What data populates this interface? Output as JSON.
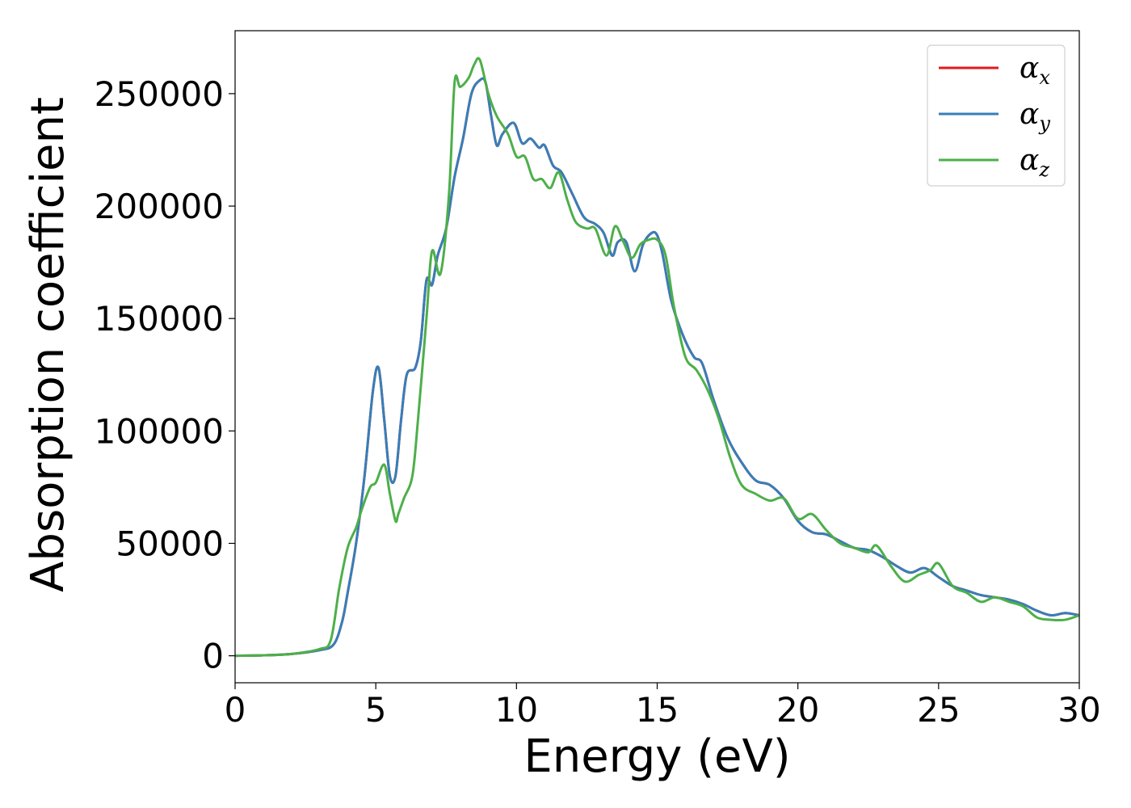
{
  "chart_data": {
    "type": "line",
    "title": "",
    "xlabel": "Energy (eV)",
    "ylabel": "Absorption coefficient",
    "xlim": [
      0,
      30
    ],
    "ylim": [
      -12000,
      278000
    ],
    "xticks": [
      0,
      5,
      10,
      15,
      20,
      25,
      30
    ],
    "yticks": [
      0,
      50000,
      100000,
      150000,
      200000,
      250000
    ],
    "grid": false,
    "legend_position": "top-right",
    "series": [
      {
        "name": "α",
        "subscript": "x",
        "color": "#e41a1c",
        "x": [
          0,
          1,
          2,
          3,
          3.5,
          3.8,
          4.0,
          4.3,
          4.6,
          4.9,
          5.1,
          5.3,
          5.5,
          5.7,
          5.9,
          6.1,
          6.4,
          6.6,
          6.8,
          7.0,
          7.2,
          7.5,
          7.8,
          8.1,
          8.4,
          8.7,
          8.9,
          9.1,
          9.3,
          9.5,
          9.9,
          10.2,
          10.5,
          10.8,
          11.0,
          11.3,
          11.6,
          12.0,
          12.4,
          12.8,
          13.1,
          13.4,
          13.6,
          13.9,
          14.2,
          14.5,
          14.8,
          15.0,
          15.2,
          15.5,
          15.9,
          16.3,
          16.6,
          17.0,
          17.5,
          18.0,
          18.5,
          19.0,
          19.5,
          20.0,
          20.5,
          21.0,
          21.5,
          22.0,
          22.5,
          23.0,
          23.5,
          24.0,
          24.5,
          25.0,
          25.5,
          26.0,
          26.5,
          27.0,
          27.5,
          28.0,
          28.5,
          29.0,
          29.5,
          30.0
        ],
        "y": [
          0,
          200,
          800,
          2500,
          5000,
          15000,
          28000,
          50000,
          80000,
          118000,
          128000,
          105000,
          80000,
          80000,
          105000,
          125000,
          128000,
          140000,
          167000,
          165000,
          178000,
          190000,
          213000,
          230000,
          250000,
          256000,
          255000,
          240000,
          227000,
          232000,
          237000,
          228000,
          230000,
          226000,
          227000,
          218000,
          215000,
          205000,
          195000,
          192000,
          188000,
          178000,
          184000,
          184000,
          171000,
          183000,
          188000,
          187000,
          178000,
          158000,
          143000,
          133000,
          130000,
          114000,
          97000,
          86000,
          78000,
          76000,
          70000,
          60000,
          55000,
          54000,
          51000,
          48000,
          47000,
          44000,
          40000,
          37000,
          39000,
          35000,
          31000,
          29000,
          27000,
          26000,
          25000,
          23000,
          20000,
          18000,
          19000,
          18000
        ]
      },
      {
        "name": "α",
        "subscript": "y",
        "color": "#377eb8",
        "x": [
          0,
          1,
          2,
          3,
          3.5,
          3.8,
          4.0,
          4.3,
          4.6,
          4.9,
          5.1,
          5.3,
          5.5,
          5.7,
          5.9,
          6.1,
          6.4,
          6.6,
          6.8,
          7.0,
          7.2,
          7.5,
          7.8,
          8.1,
          8.4,
          8.7,
          8.9,
          9.1,
          9.3,
          9.5,
          9.9,
          10.2,
          10.5,
          10.8,
          11.0,
          11.3,
          11.6,
          12.0,
          12.4,
          12.8,
          13.1,
          13.4,
          13.6,
          13.9,
          14.2,
          14.5,
          14.8,
          15.0,
          15.2,
          15.5,
          15.9,
          16.3,
          16.6,
          17.0,
          17.5,
          18.0,
          18.5,
          19.0,
          19.5,
          20.0,
          20.5,
          21.0,
          21.5,
          22.0,
          22.5,
          23.0,
          23.5,
          24.0,
          24.5,
          25.0,
          25.5,
          26.0,
          26.5,
          27.0,
          27.5,
          28.0,
          28.5,
          29.0,
          29.5,
          30.0
        ],
        "y": [
          0,
          200,
          800,
          2500,
          5000,
          15000,
          28000,
          50000,
          80000,
          118000,
          128000,
          105000,
          80000,
          80000,
          105000,
          125000,
          128000,
          140000,
          167000,
          165000,
          178000,
          190000,
          213000,
          230000,
          250000,
          256000,
          255000,
          240000,
          227000,
          232000,
          237000,
          228000,
          230000,
          226000,
          227000,
          218000,
          215000,
          205000,
          195000,
          192000,
          188000,
          178000,
          184000,
          184000,
          171000,
          183000,
          188000,
          187000,
          178000,
          158000,
          143000,
          133000,
          130000,
          114000,
          97000,
          86000,
          78000,
          76000,
          70000,
          60000,
          55000,
          54000,
          51000,
          48000,
          47000,
          44000,
          40000,
          37000,
          39000,
          35000,
          31000,
          29000,
          27000,
          26000,
          25000,
          23000,
          20000,
          18000,
          19000,
          18000
        ]
      },
      {
        "name": "α",
        "subscript": "z",
        "color": "#4daf4a",
        "x": [
          0,
          1,
          2,
          3,
          3.4,
          3.7,
          4.0,
          4.3,
          4.5,
          4.8,
          5.0,
          5.3,
          5.5,
          5.7,
          5.8,
          6.0,
          6.3,
          6.5,
          6.8,
          7.0,
          7.3,
          7.6,
          7.8,
          8.0,
          8.3,
          8.5,
          8.7,
          9.0,
          9.3,
          9.7,
          10.0,
          10.3,
          10.6,
          10.9,
          11.2,
          11.5,
          11.8,
          12.1,
          12.5,
          12.8,
          13.2,
          13.5,
          13.8,
          14.1,
          14.4,
          14.7,
          15.0,
          15.3,
          15.6,
          16.0,
          16.4,
          16.8,
          17.2,
          17.6,
          18.0,
          18.5,
          19.0,
          19.5,
          20.0,
          20.5,
          21.0,
          21.5,
          22.0,
          22.5,
          22.8,
          23.3,
          23.8,
          24.3,
          24.7,
          25.0,
          25.5,
          26.0,
          26.5,
          27.0,
          27.5,
          28.0,
          28.5,
          29.0,
          29.5,
          30.0
        ],
        "y": [
          0,
          200,
          800,
          3000,
          7000,
          30000,
          48000,
          57000,
          65000,
          75000,
          77000,
          85000,
          72000,
          60000,
          63000,
          70000,
          80000,
          105000,
          150000,
          180000,
          170000,
          205000,
          255000,
          253000,
          257000,
          263000,
          265000,
          250000,
          240000,
          232000,
          222000,
          222000,
          212000,
          212000,
          208000,
          215000,
          203000,
          193000,
          190000,
          190000,
          178000,
          191000,
          184000,
          177000,
          183000,
          185000,
          185000,
          178000,
          155000,
          133000,
          127000,
          118000,
          105000,
          88000,
          76000,
          72000,
          69000,
          70000,
          61000,
          63000,
          56000,
          50000,
          48000,
          46000,
          49000,
          40000,
          33000,
          36000,
          38000,
          41000,
          31000,
          28000,
          24000,
          26000,
          24000,
          22000,
          17000,
          16000,
          16000,
          18000
        ]
      }
    ]
  }
}
